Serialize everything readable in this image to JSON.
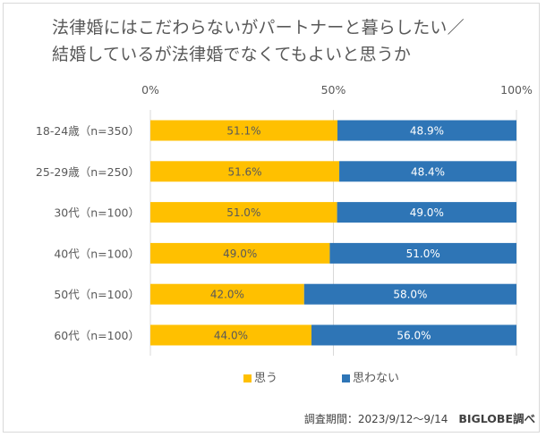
{
  "colors": {
    "yes": "#FFC000",
    "no": "#2E75B6",
    "grid": "#d9d9d9",
    "text": "#595959"
  },
  "chart_data": {
    "type": "bar",
    "orientation": "horizontal",
    "stacked": "percent",
    "title": "法律婚にはこだわらないがパートナーと暮らしたい／結婚しているが法律婚でなくてもよいと思うか",
    "title_lines": [
      "法律婚にはこだわらないがパートナーと暮らしたい／",
      "結婚しているが法律婚でなくてもよいと思うか"
    ],
    "xlabel": "",
    "ylabel": "",
    "xlim": [
      0,
      100
    ],
    "x_ticks": [
      "0%",
      "50%",
      "100%"
    ],
    "x_tick_values": [
      0,
      50,
      100
    ],
    "grid": true,
    "legend_position": "bottom",
    "categories": [
      "18-24歳（n=350）",
      "25-29歳（n=250）",
      "30代（n=100）",
      "40代（n=100）",
      "50代（n=100）",
      "60代（n=100）"
    ],
    "series": [
      {
        "name": "思う",
        "values": [
          51.1,
          51.6,
          51.0,
          49.0,
          42.0,
          44.0
        ],
        "labels": [
          "51.1%",
          "51.6%",
          "51.0%",
          "49.0%",
          "42.0%",
          "44.0%"
        ]
      },
      {
        "name": "思わない",
        "values": [
          48.9,
          48.4,
          49.0,
          51.0,
          58.0,
          56.0
        ],
        "labels": [
          "48.9%",
          "48.4%",
          "49.0%",
          "51.0%",
          "58.0%",
          "56.0%"
        ]
      }
    ]
  },
  "footer": {
    "period": "調査期間：2023/9/12～9/14",
    "source": "BIGLOBE調べ"
  }
}
